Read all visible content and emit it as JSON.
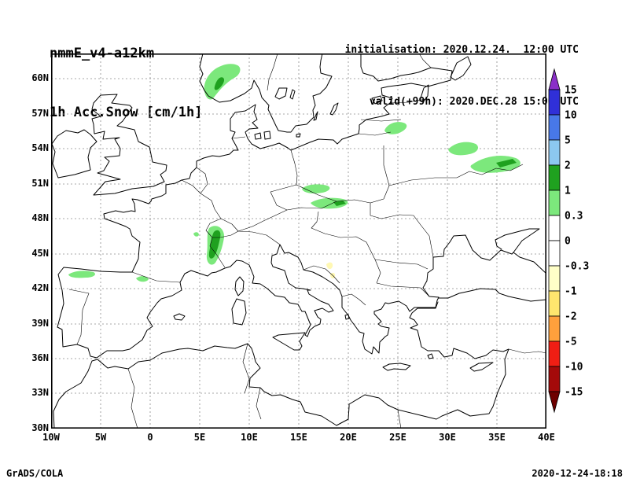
{
  "header": {
    "model": "nmmE_v4-a12km",
    "field": "1h Acc.Snow [cm/1h]",
    "init_line": "initialisation: 2020.12.24.  12:00 UTC",
    "valid_line": "valid(+99h): 2020.DEC.28 15:00 UTC"
  },
  "footer": {
    "left": "GrADS/COLA",
    "right": "2020-12-24-18:18"
  },
  "map": {
    "lat_ticks": [
      "60N",
      "57N",
      "54N",
      "51N",
      "48N",
      "45N",
      "42N",
      "39N",
      "36N",
      "33N",
      "30N"
    ],
    "lon_ticks": [
      "10W",
      "5W",
      "0",
      "5E",
      "10E",
      "15E",
      "20E",
      "25E",
      "30E",
      "35E",
      "40E"
    ],
    "grid_color": "#8a8a8a",
    "coast_color": "#000000"
  },
  "colorbar": {
    "labels": [
      "15",
      "10",
      "5",
      "2",
      "1",
      "0.3",
      "0",
      "-0.3",
      "-1",
      "-2",
      "-5",
      "-10",
      "-15"
    ],
    "segment_colors": [
      "#3030d8",
      "#4878e8",
      "#8cc8f0",
      "#1fa11f",
      "#7ce87c",
      "#ffffff",
      "#ffffff",
      "#ffffc8",
      "#ffe66e",
      "#ffa03c",
      "#f01e14",
      "#a40a0a"
    ],
    "top_arrow_color": "#8a2fc8",
    "bottom_arrow_color": "#6e0000"
  },
  "palette": {
    "snow_light": "#7ce87c",
    "snow_dark": "#1fa11f",
    "melt_pale": "#fff8b4"
  }
}
